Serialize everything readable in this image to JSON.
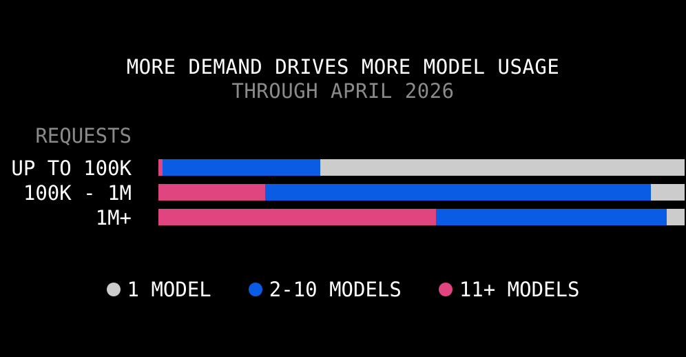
{
  "chart_data": {
    "type": "bar",
    "orientation": "horizontal",
    "stacked": true,
    "normalized": true,
    "title": "MORE DEMAND DRIVES MORE MODEL USAGE",
    "subtitle": "THROUGH APRIL 2026",
    "ylabel": "REQUESTS",
    "xlabel": "",
    "categories": [
      "UP TO 100K",
      "100K - 1M",
      "1M+"
    ],
    "series": [
      {
        "name": "11+ MODELS",
        "color": "#e0457f",
        "values": [
          0.8,
          20.3,
          52.8
        ]
      },
      {
        "name": "2-10 MODELS",
        "color": "#0a5ce5",
        "values": [
          29.9,
          73.3,
          43.8
        ]
      },
      {
        "name": "1 MODEL",
        "color": "#cccccc",
        "values": [
          69.3,
          6.4,
          3.4
        ]
      }
    ],
    "xlim": [
      0,
      100
    ],
    "grid": false,
    "legend": {
      "position": "bottom",
      "items": [
        {
          "label": "1 MODEL",
          "color": "#cccccc"
        },
        {
          "label": "2-10 MODELS",
          "color": "#0a5ce5"
        },
        {
          "label": "11+ MODELS",
          "color": "#e0457f"
        }
      ]
    }
  }
}
